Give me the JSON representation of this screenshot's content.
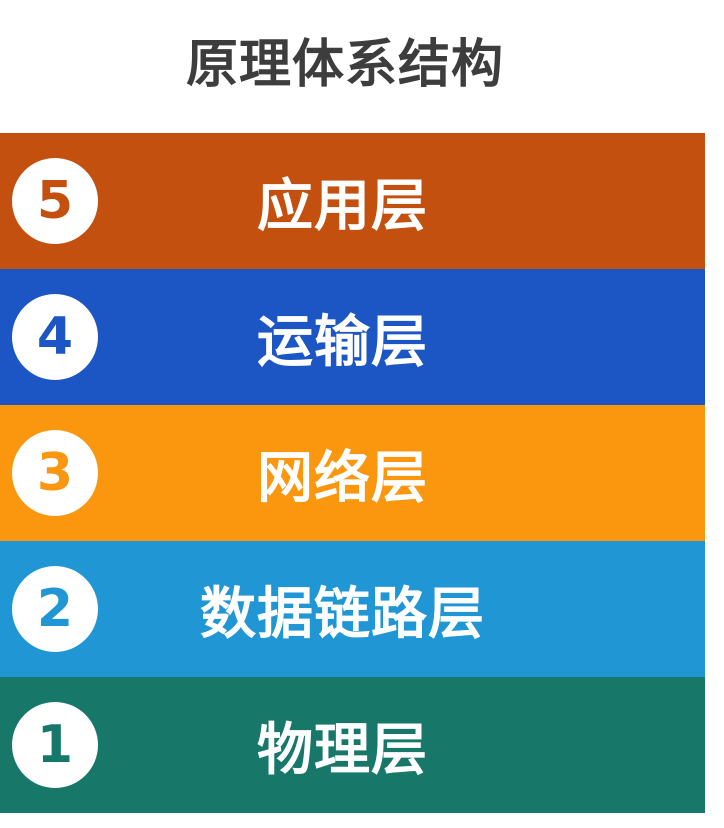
{
  "title": "原理体系结构",
  "layers": [
    {
      "number": "5",
      "label": "应用层",
      "color": "#c4500f"
    },
    {
      "number": "4",
      "label": "运输层",
      "color": "#1c55c4"
    },
    {
      "number": "3",
      "label": "网络层",
      "color": "#fb960f"
    },
    {
      "number": "2",
      "label": "数据链路层",
      "color": "#2196d4"
    },
    {
      "number": "1",
      "label": "物理层",
      "color": "#17786a"
    }
  ]
}
